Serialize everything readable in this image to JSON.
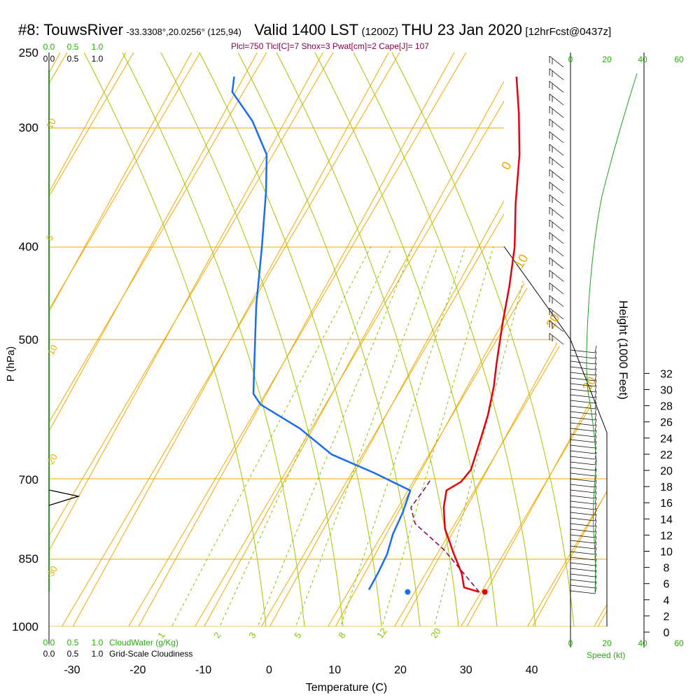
{
  "header": {
    "station": "#8: TouwsRiver",
    "location": "-33.3308°,20.0256° (125,94)",
    "valid": "Valid 1400 LST",
    "utc": "(1200Z)",
    "date": "THU 23 Jan 2020",
    "forecast": "[12hrFcst@0437z]"
  },
  "params_line": "Plcl=750 Tlcl[C]=7 Shox=3 Pwat[cm]=2 Cape[J]= 107",
  "colors": {
    "isotherm": "#f0a800",
    "dry_adiabat": "#f0a800",
    "moist_adiabat": "#a0c800",
    "mixing_ratio": "#80c800",
    "temperature": "#e8000a",
    "dewpoint": "#1a6cf0",
    "parcel": "#800050",
    "cloud": "#20a020",
    "green_label": "#20b000"
  },
  "chart_data": {
    "type": "line",
    "title": "Skew-T log-P sounding, TouwsRiver, Valid 1400 LST THU 23 Jan 2020",
    "xlabel": "Temperature (C)",
    "ylabel": "P (hPa)",
    "right_ylabel": "Height (1000 Feet)",
    "x_ticks": [
      "-30",
      "-20",
      "-10",
      "0",
      "10",
      "20",
      "30",
      "40"
    ],
    "p_ticks": [
      "250",
      "300",
      "400",
      "500",
      "700",
      "850",
      "1000"
    ],
    "height_ticks": [
      "0",
      "2",
      "4",
      "6",
      "8",
      "10",
      "12",
      "14",
      "16",
      "18",
      "20",
      "22",
      "24",
      "26",
      "28",
      "30",
      "32"
    ],
    "xlim": [
      -33,
      44
    ],
    "plim": [
      1000,
      250
    ],
    "series": [
      {
        "name": "Temperature",
        "points": [
          [
            29.0,
            920
          ],
          [
            26.3,
            910
          ],
          [
            24.8,
            880
          ],
          [
            22.0,
            840
          ],
          [
            18.5,
            790
          ],
          [
            16.5,
            750
          ],
          [
            15.5,
            720
          ],
          [
            17.0,
            705
          ],
          [
            17.5,
            685
          ],
          [
            16.5,
            640
          ],
          [
            15.5,
            600
          ],
          [
            14.0,
            560
          ],
          [
            12.5,
            530
          ],
          [
            10.0,
            480
          ],
          [
            8.0,
            440
          ],
          [
            5.5,
            400
          ],
          [
            2.0,
            360
          ],
          [
            -1.5,
            320
          ],
          [
            -5.0,
            290
          ],
          [
            -8.5,
            265
          ]
        ]
      },
      {
        "name": "Dewpoint",
        "points": [
          [
            12.0,
            915
          ],
          [
            12.0,
            880
          ],
          [
            11.8,
            840
          ],
          [
            11.0,
            800
          ],
          [
            10.7,
            760
          ],
          [
            10.0,
            720
          ],
          [
            3.0,
            690
          ],
          [
            -5.0,
            660
          ],
          [
            -12.0,
            620
          ],
          [
            -20.0,
            585
          ],
          [
            -22.0,
            570
          ],
          [
            -25.0,
            520
          ],
          [
            -29.0,
            460
          ],
          [
            -33.0,
            400
          ],
          [
            -37.0,
            350
          ],
          [
            -40.0,
            320
          ],
          [
            -45.0,
            295
          ],
          [
            -50.5,
            275
          ],
          [
            -51.5,
            265
          ]
        ]
      },
      {
        "name": "Parcel",
        "points": [
          [
            29.0,
            920
          ],
          [
            20.0,
            830
          ],
          [
            13.5,
            780
          ],
          [
            11.5,
            750
          ],
          [
            12.0,
            720
          ],
          [
            12.2,
            700
          ]
        ]
      }
    ],
    "surface_markers": {
      "temperature": 29,
      "dewpoint": 16.5,
      "pressure": 920
    },
    "isotherm_labels": [
      "10",
      "0",
      "-10",
      "-20",
      "-30",
      "0",
      "10",
      "20",
      "30"
    ],
    "mixing_ratio_labels": [
      "1",
      "2",
      "3",
      "5",
      "8",
      "12",
      "20"
    ],
    "cloud_scale_labels": [
      "0.0",
      "0.5",
      "1.0"
    ],
    "cloud_water_label": "CloudWater (g/Kg)",
    "cloudiness_label": "Grid-Scale Cloudiness",
    "wind_speed_ticks": [
      "0",
      "20",
      "40",
      "60"
    ],
    "wind_speed_label": "Speed (kt)"
  }
}
